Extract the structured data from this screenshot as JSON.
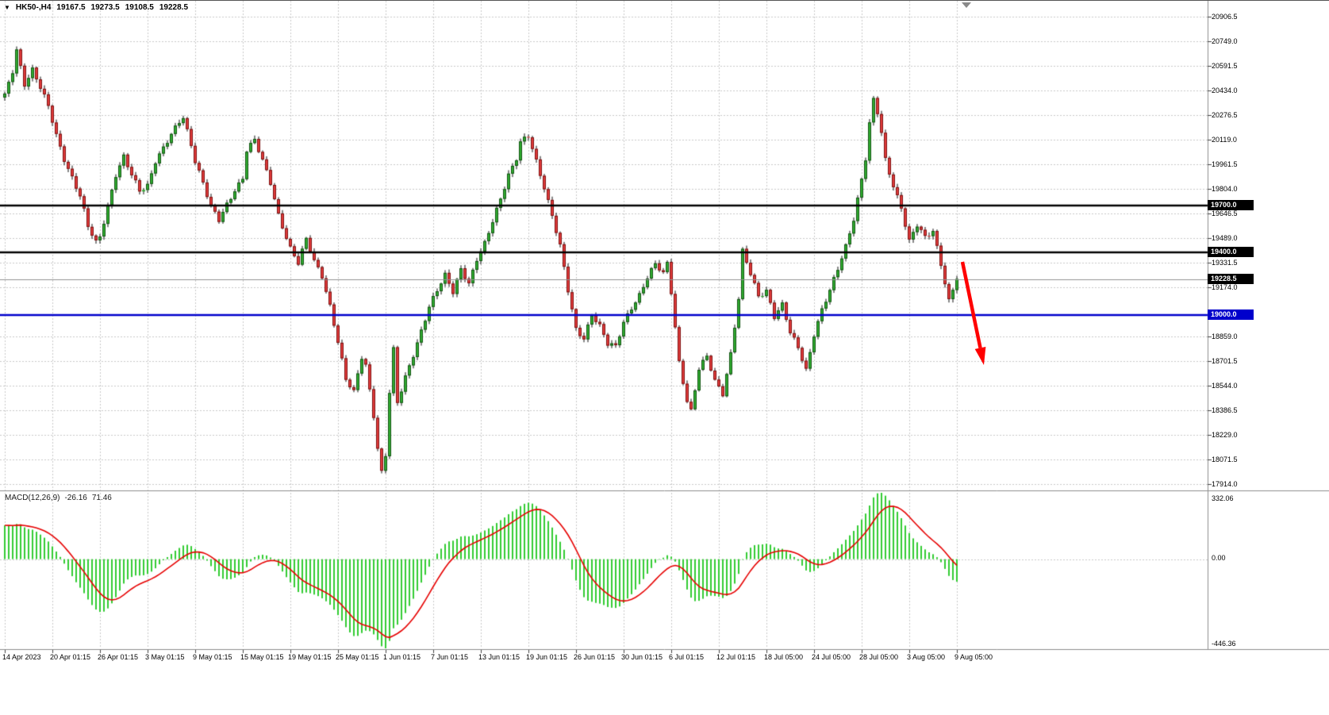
{
  "header": {
    "dropdown_icon": "▼",
    "symbol_period": "HK50-,H4",
    "ohlc": {
      "open": "19167.5",
      "high": "19273.5",
      "low": "19108.5",
      "close": "19228.5"
    }
  },
  "chart_data": {
    "type": "candlestick",
    "title": "HK50-,H4",
    "instrument": "HK50",
    "timeframe": "H4",
    "bar_count": 241,
    "y_axis": {
      "side": "right",
      "range": [
        17875,
        21010
      ],
      "ticks": [
        20906.5,
        20749.0,
        20591.5,
        20434.0,
        20276.5,
        20119.0,
        19961.5,
        19804.0,
        19646.5,
        19489.0,
        19331.5,
        19174.0,
        18859.0,
        18701.5,
        18544.0,
        18386.5,
        18229.0,
        18071.5,
        17914.0
      ]
    },
    "x_axis": {
      "bars_per_gridline": 12,
      "labels": [
        "14 Apr 2023",
        "20 Apr 01:15",
        "26 Apr 01:15",
        "3 May 01:15",
        "9 May 01:15",
        "15 May 01:15",
        "19 May 01:15",
        "25 May 01:15",
        "1 Jun 01:15",
        "7 Jun 01:15",
        "13 Jun 01:15",
        "19 Jun 01:15",
        "26 Jun 01:15",
        "30 Jun 01:15",
        "6 Jul 01:15",
        "12 Jul 01:15",
        "18 Jul 05:00",
        "24 Jul 05:00",
        "28 Jul 05:00",
        "3 Aug 05:00",
        "9 Aug 05:00"
      ]
    },
    "price_path_anchors": [
      [
        0,
        20400
      ],
      [
        2,
        20560
      ],
      [
        3,
        20700
      ],
      [
        5,
        20480
      ],
      [
        7,
        20570
      ],
      [
        9,
        20450
      ],
      [
        11,
        20330
      ],
      [
        13,
        20150
      ],
      [
        15,
        20000
      ],
      [
        17,
        19880
      ],
      [
        19,
        19760
      ],
      [
        21,
        19560
      ],
      [
        23,
        19460
      ],
      [
        24,
        19500
      ],
      [
        26,
        19700
      ],
      [
        28,
        19900
      ],
      [
        30,
        20010
      ],
      [
        32,
        19890
      ],
      [
        34,
        19790
      ],
      [
        36,
        19830
      ],
      [
        38,
        19990
      ],
      [
        40,
        20070
      ],
      [
        42,
        20150
      ],
      [
        44,
        20230
      ],
      [
        45,
        20260
      ],
      [
        47,
        20090
      ],
      [
        48,
        19990
      ],
      [
        50,
        19850
      ],
      [
        52,
        19690
      ],
      [
        54,
        19600
      ],
      [
        56,
        19700
      ],
      [
        58,
        19800
      ],
      [
        60,
        19880
      ],
      [
        61,
        20060
      ],
      [
        63,
        20120
      ],
      [
        65,
        19980
      ],
      [
        67,
        19840
      ],
      [
        69,
        19640
      ],
      [
        71,
        19500
      ],
      [
        72,
        19430
      ],
      [
        74,
        19330
      ],
      [
        76,
        19480
      ],
      [
        78,
        19340
      ],
      [
        80,
        19250
      ],
      [
        82,
        19060
      ],
      [
        84,
        18830
      ],
      [
        86,
        18580
      ],
      [
        88,
        18500
      ],
      [
        90,
        18730
      ],
      [
        91,
        18680
      ],
      [
        93,
        18360
      ],
      [
        94,
        18150
      ],
      [
        95,
        17990
      ],
      [
        96,
        18100
      ],
      [
        97,
        18500
      ],
      [
        98,
        18770
      ],
      [
        99,
        18430
      ],
      [
        101,
        18600
      ],
      [
        103,
        18750
      ],
      [
        105,
        18900
      ],
      [
        107,
        19050
      ],
      [
        109,
        19150
      ],
      [
        111,
        19250
      ],
      [
        113,
        19150
      ],
      [
        115,
        19300
      ],
      [
        117,
        19200
      ],
      [
        119,
        19350
      ],
      [
        121,
        19450
      ],
      [
        123,
        19600
      ],
      [
        125,
        19750
      ],
      [
        127,
        19900
      ],
      [
        129,
        20000
      ],
      [
        130,
        20100
      ],
      [
        132,
        20140
      ],
      [
        134,
        19980
      ],
      [
        136,
        19820
      ],
      [
        138,
        19640
      ],
      [
        140,
        19440
      ],
      [
        142,
        19150
      ],
      [
        144,
        18900
      ],
      [
        146,
        18850
      ],
      [
        148,
        19010
      ],
      [
        150,
        18930
      ],
      [
        152,
        18810
      ],
      [
        154,
        18790
      ],
      [
        156,
        18950
      ],
      [
        158,
        19050
      ],
      [
        160,
        19130
      ],
      [
        162,
        19240
      ],
      [
        164,
        19320
      ],
      [
        166,
        19260
      ],
      [
        167,
        19330
      ],
      [
        168,
        19150
      ],
      [
        170,
        18700
      ],
      [
        172,
        18450
      ],
      [
        173,
        18380
      ],
      [
        175,
        18650
      ],
      [
        177,
        18730
      ],
      [
        179,
        18580
      ],
      [
        181,
        18500
      ],
      [
        183,
        18750
      ],
      [
        185,
        19100
      ],
      [
        186,
        19400
      ],
      [
        188,
        19260
      ],
      [
        190,
        19120
      ],
      [
        192,
        19160
      ],
      [
        194,
        18990
      ],
      [
        196,
        19060
      ],
      [
        198,
        18880
      ],
      [
        200,
        18790
      ],
      [
        202,
        18650
      ],
      [
        204,
        18880
      ],
      [
        206,
        19030
      ],
      [
        208,
        19150
      ],
      [
        210,
        19290
      ],
      [
        212,
        19440
      ],
      [
        214,
        19620
      ],
      [
        216,
        19870
      ],
      [
        217,
        20000
      ],
      [
        218,
        20220
      ],
      [
        219,
        20370
      ],
      [
        220,
        20290
      ],
      [
        221,
        20160
      ],
      [
        222,
        19990
      ],
      [
        224,
        19830
      ],
      [
        226,
        19690
      ],
      [
        228,
        19470
      ],
      [
        230,
        19570
      ],
      [
        232,
        19490
      ],
      [
        234,
        19540
      ],
      [
        236,
        19330
      ],
      [
        238,
        19090
      ],
      [
        239,
        19160
      ],
      [
        240,
        19228.5
      ]
    ],
    "horizontal_levels": [
      {
        "price": 19700.0,
        "label": "19700.0",
        "color": "#000000",
        "width": 2.6
      },
      {
        "price": 19400.0,
        "label": "19400.0",
        "color": "#000000",
        "width": 2.6
      },
      {
        "price": 19000.0,
        "label": "19000.0",
        "color": "#0000CC",
        "width": 2.6
      }
    ],
    "current_price": {
      "price": 19228.5,
      "label": "19228.5"
    },
    "indicator": {
      "name": "MACD",
      "label": "MACD(12,26,9)",
      "params": [
        12,
        26,
        9
      ],
      "macd_value": "-26.16",
      "signal_value": "71.46",
      "axis": {
        "max": 332.06,
        "min": -446.36,
        "labels": [
          "332.06",
          "0.00",
          "-446.36"
        ]
      },
      "histogram_color": "#33CC33",
      "signal_color": "#E60000"
    }
  },
  "annotations": {
    "arrow": {
      "direction": "down-right",
      "color": "#FF0000",
      "from": [
        1213,
        329
      ],
      "to": [
        1240,
        459
      ]
    }
  },
  "colors": {
    "background": "#FFFFFF",
    "grid": "#C8C8C8",
    "up_fill": "#2FAE2F",
    "up_border": "#145214",
    "down_fill": "#E23B3B",
    "down_border": "#7C1212",
    "wick": "#111111",
    "separator": "#8C8C8C",
    "current_price_line": "#909090",
    "tag_bg_black": "#000000",
    "tag_bg_blue": "#0000CC",
    "tag_text": "#FFFFFF"
  }
}
